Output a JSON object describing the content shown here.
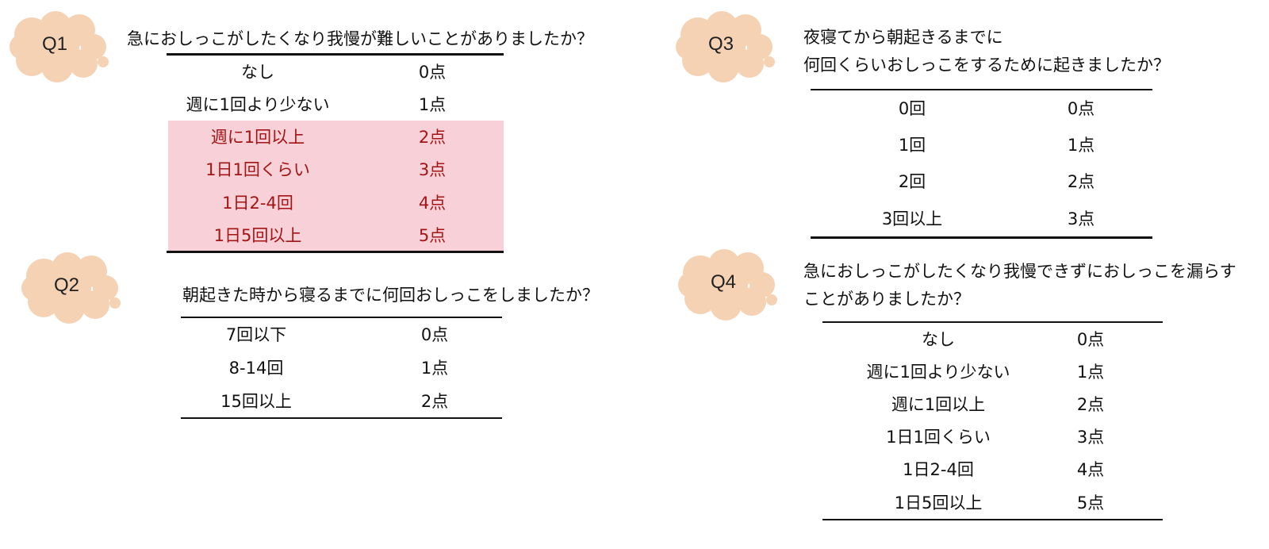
{
  "colors": {
    "cloud": "#f5d2b4",
    "highlight_bg": "#f8d1d8",
    "highlight_text": "#a31414"
  },
  "q1": {
    "label": "Q1",
    "question": [
      "急におしっこがしたくなり我慢が難しいことがありましたか？"
    ],
    "rows": [
      {
        "answer": "なし",
        "score": "0点",
        "highlight": false
      },
      {
        "answer": "週に1回より少ない",
        "score": "1点",
        "highlight": false
      },
      {
        "answer": "週に1回以上",
        "score": "2点",
        "highlight": true
      },
      {
        "answer": "1日1回くらい",
        "score": "3点",
        "highlight": true
      },
      {
        "answer": "1日2-4回",
        "score": "4点",
        "highlight": true
      },
      {
        "answer": "1日5回以上",
        "score": "5点",
        "highlight": true
      }
    ]
  },
  "q2": {
    "label": "Q2",
    "question": [
      "朝起きた時から寝るまでに何回おしっこをしましたか？"
    ],
    "rows": [
      {
        "answer": "7回以下",
        "score": "0点"
      },
      {
        "answer": "8-14回",
        "score": "1点"
      },
      {
        "answer": "15回以上",
        "score": "2点"
      }
    ]
  },
  "q3": {
    "label": "Q3",
    "question": [
      "夜寝てから朝起きるまでに",
      "何回くらいおしっこをするために起きましたか？"
    ],
    "rows": [
      {
        "answer": "0回",
        "score": "0点"
      },
      {
        "answer": "1回",
        "score": "1点"
      },
      {
        "answer": "2回",
        "score": "2点"
      },
      {
        "answer": "3回以上",
        "score": "3点"
      }
    ]
  },
  "q4": {
    "label": "Q4",
    "question": [
      "急におしっこがしたくなり我慢できずにおしっこを漏らす",
      "ことがありましたか？"
    ],
    "rows": [
      {
        "answer": "なし",
        "score": "0点"
      },
      {
        "answer": "週に1回より少ない",
        "score": "1点"
      },
      {
        "answer": "週に1回以上",
        "score": "2点"
      },
      {
        "answer": "1日1回くらい",
        "score": "3点"
      },
      {
        "answer": "1日2-4回",
        "score": "4点"
      },
      {
        "answer": "1日5回以上",
        "score": "5点"
      }
    ]
  }
}
